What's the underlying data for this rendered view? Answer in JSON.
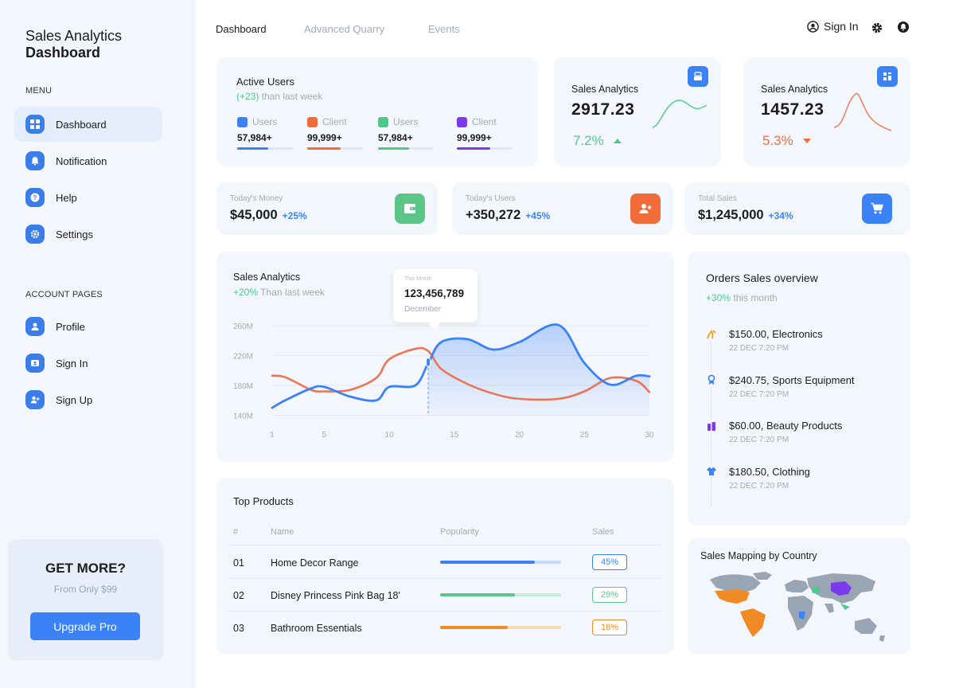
{
  "sidebar": {
    "title_line1": "Sales Analytics",
    "title_line2": "Dashboard",
    "menu_heading": "MENU",
    "menu": [
      {
        "label": "Dashboard",
        "icon": "grid-icon",
        "active": true
      },
      {
        "label": "Notification",
        "icon": "bell-icon"
      },
      {
        "label": "Help",
        "icon": "help-icon"
      },
      {
        "label": "Settings",
        "icon": "gear-icon"
      }
    ],
    "account_heading": "ACCOUNT PAGES",
    "account": [
      {
        "label": "Profile",
        "icon": "user-icon"
      },
      {
        "label": "Sign In",
        "icon": "id-card-icon"
      },
      {
        "label": "Sign Up",
        "icon": "user-plus-icon"
      }
    ],
    "promo": {
      "title": "GET MORE?",
      "subtitle": "From Only $99",
      "button": "Upgrade Pro"
    }
  },
  "topbar": {
    "tabs": [
      "Dashboard",
      "Advanced Quarry",
      "Events"
    ],
    "sign_in": "Sign In"
  },
  "active_users": {
    "title": "Active Users",
    "delta": "(+23)",
    "delta_suffix": "than last week",
    "items": [
      {
        "label": "Users",
        "value": "57,984+",
        "color": "#3b82f6",
        "fill": 0.55
      },
      {
        "label": "Client",
        "value": "99,999+",
        "color": "#f26b3a",
        "fill": 0.6
      },
      {
        "label": "Users",
        "value": "57,984+",
        "color": "#4cc98a",
        "fill": 0.55
      },
      {
        "label": "Client",
        "value": "99,999+",
        "color": "#7c3aed",
        "fill": 0.6
      }
    ]
  },
  "kpi_a": {
    "title": "Sales Analytics",
    "value": "2917.23",
    "pct": "7.2%",
    "color": "#4cc98a"
  },
  "kpi_b": {
    "title": "Sales Analytics",
    "value": "1457.23",
    "pct": "5.3%",
    "color": "#f26b3a"
  },
  "stats": [
    {
      "label": "Today's Money",
      "value": "$45,000",
      "delta": "+25%",
      "icon": "wallet-icon",
      "color": "#5cc689"
    },
    {
      "label": "Today's Users",
      "value": "+350,272",
      "delta": "+45%",
      "icon": "user-plus-icon",
      "color": "#f26b3a"
    },
    {
      "label": "Total Sales",
      "value": "$1,245,000",
      "delta": "+34%",
      "icon": "cart-icon",
      "color": "#3b82f6"
    }
  ],
  "sales_chart": {
    "title": "Sales Analytics",
    "delta": "+20%",
    "delta_suffix": "Than last week",
    "tooltip": {
      "label": "This Month",
      "value": "123,456,789",
      "sub": "December"
    }
  },
  "chart_data": {
    "type": "line",
    "x": [
      1,
      2,
      4,
      5,
      7,
      9,
      10,
      12,
      13,
      14,
      16,
      18,
      20,
      23,
      25,
      27,
      29,
      30
    ],
    "yticks": [
      "260M",
      "220M",
      "180M",
      "140M"
    ],
    "xticks": [
      "1",
      "5",
      "10",
      "15",
      "20",
      "25",
      "30"
    ],
    "ylim": [
      140,
      260
    ],
    "series": [
      {
        "color": "#3b82f6",
        "values": [
          150,
          160,
          176,
          178,
          165,
          160,
          178,
          180,
          210,
          238,
          242,
          228,
          238,
          261,
          210,
          181,
          193,
          192
        ]
      },
      {
        "color": "#ea7655",
        "values": [
          193,
          191,
          174,
          172,
          174,
          190,
          215,
          229,
          226,
          202,
          182,
          169,
          162,
          162,
          172,
          190,
          186,
          171
        ]
      }
    ]
  },
  "orders": {
    "title": "Orders Sales overview",
    "delta": "+30%",
    "delta_suffix": "this month",
    "items": [
      {
        "title": "$150.00, Electronics",
        "date": "22 DEC 7:20 PM",
        "icon": "rocket-icon",
        "color": "#f59e0b"
      },
      {
        "title": "$240.75, Sports Equipment",
        "date": "22 DEC 7:20 PM",
        "icon": "award-icon",
        "color": "#3b82f6"
      },
      {
        "title": "$60.00, Beauty Products",
        "date": "22 DEC 7:20 PM",
        "icon": "bag-icon",
        "color": "#7c3aed"
      },
      {
        "title": "$180.50, Clothing",
        "date": "22 DEC 7:20 PM",
        "icon": "shirt-icon",
        "color": "#3b82f6"
      }
    ]
  },
  "top_products": {
    "title": "Top Products",
    "headers": [
      "#",
      "Name",
      "Popularity",
      "Sales"
    ],
    "rows": [
      {
        "n": "01",
        "name": "Home Decor Range",
        "sales": "45%",
        "color": "#3b82f6",
        "track": "#c6dafc",
        "pop": 0.78
      },
      {
        "n": "02",
        "name": "Disney Princess Pink Bag 18'",
        "sales": "29%",
        "color": "#5cc689",
        "track": "#c9ecd8",
        "pop": 0.62
      },
      {
        "n": "03",
        "name": "Bathroom Essentials",
        "sales": "18%",
        "color": "#f08a24",
        "track": "#fbd9b3",
        "pop": 0.56
      }
    ]
  },
  "map": {
    "title": "Sales Mapping by Country"
  }
}
